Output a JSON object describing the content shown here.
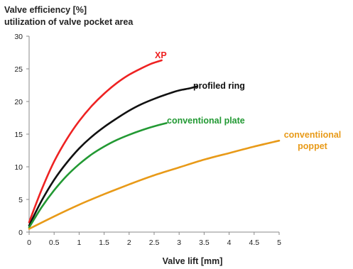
{
  "chart_data": {
    "type": "line",
    "title_lines": [
      "Valve efficiency [%]",
      "utilization of valve pocket area"
    ],
    "xlabel": "Valve lift [mm]",
    "xlim": [
      0,
      5
    ],
    "ylim": [
      0,
      30
    ],
    "x_ticks": [
      "0",
      "0.5",
      "1",
      "1.5",
      "2",
      "2.5",
      "3",
      "3.5",
      "4",
      "4.5",
      "5"
    ],
    "y_ticks": [
      "0",
      "5",
      "10",
      "15",
      "20",
      "25",
      "30"
    ],
    "grid": false,
    "series": [
      {
        "name": "XP",
        "color": "#ee2222",
        "label_lines": [
          "XP"
        ],
        "points": [
          [
            0,
            1.5
          ],
          [
            0.25,
            6.5
          ],
          [
            0.5,
            10.8
          ],
          [
            0.75,
            14.2
          ],
          [
            1.0,
            17.0
          ],
          [
            1.25,
            19.3
          ],
          [
            1.5,
            21.2
          ],
          [
            1.75,
            22.8
          ],
          [
            2.0,
            24.1
          ],
          [
            2.25,
            25.1
          ],
          [
            2.45,
            25.8
          ],
          [
            2.65,
            26.3
          ]
        ]
      },
      {
        "name": "profiled ring",
        "color": "#111111",
        "label_lines": [
          "profiled ring"
        ],
        "points": [
          [
            0,
            1.0
          ],
          [
            0.25,
            4.8
          ],
          [
            0.5,
            8.0
          ],
          [
            0.75,
            10.6
          ],
          [
            1.0,
            12.8
          ],
          [
            1.25,
            14.6
          ],
          [
            1.5,
            16.1
          ],
          [
            1.75,
            17.4
          ],
          [
            2.0,
            18.6
          ],
          [
            2.25,
            19.6
          ],
          [
            2.5,
            20.4
          ],
          [
            2.75,
            21.1
          ],
          [
            3.0,
            21.7
          ],
          [
            3.2,
            22.0
          ],
          [
            3.35,
            22.3
          ]
        ]
      },
      {
        "name": "conventional plate",
        "color": "#229933",
        "label_lines": [
          "conventional plate"
        ],
        "points": [
          [
            0,
            0.7
          ],
          [
            0.25,
            3.8
          ],
          [
            0.5,
            6.4
          ],
          [
            0.75,
            8.6
          ],
          [
            1.0,
            10.4
          ],
          [
            1.25,
            11.9
          ],
          [
            1.5,
            13.1
          ],
          [
            1.75,
            14.1
          ],
          [
            2.0,
            14.9
          ],
          [
            2.25,
            15.6
          ],
          [
            2.5,
            16.2
          ],
          [
            2.75,
            16.7
          ]
        ]
      },
      {
        "name": "conventiional poppet",
        "color": "#e89a18",
        "label_lines": [
          "conventiional",
          "poppet"
        ],
        "points": [
          [
            0,
            0.5
          ],
          [
            0.5,
            2.4
          ],
          [
            1.0,
            4.2
          ],
          [
            1.5,
            5.8
          ],
          [
            2.0,
            7.3
          ],
          [
            2.5,
            8.7
          ],
          [
            3.0,
            9.9
          ],
          [
            3.5,
            11.1
          ],
          [
            4.0,
            12.1
          ],
          [
            4.5,
            13.1
          ],
          [
            5.0,
            14.0
          ]
        ]
      }
    ]
  }
}
